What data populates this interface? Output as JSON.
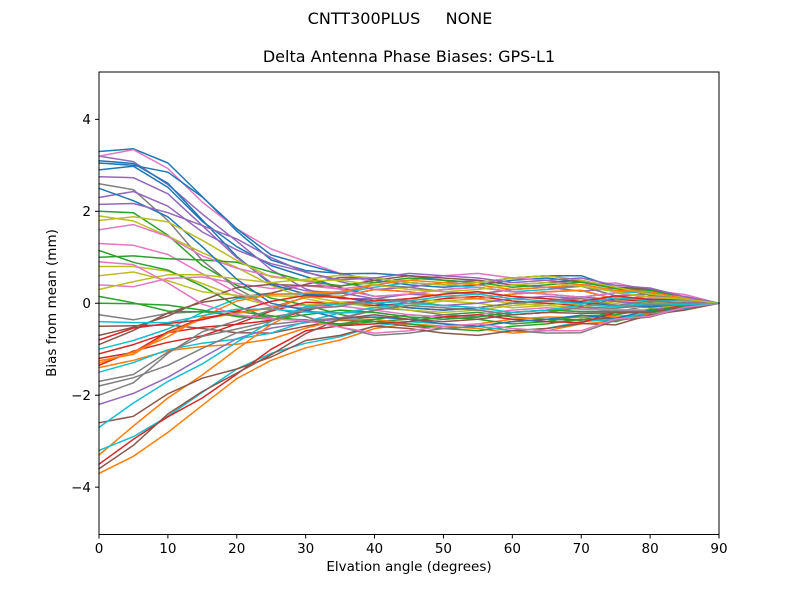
{
  "figure": {
    "suptitle": "CNTT300PLUS     NONE"
  },
  "chart_data": {
    "type": "line",
    "title": "Delta Antenna Phase Biases: GPS-L1",
    "xlabel": "Elvation angle (degrees)",
    "ylabel": "Bias from mean (mm)",
    "xlim": [
      0,
      90
    ],
    "ylim": [
      -5.03,
      5.03
    ],
    "x_ticks": [
      0,
      10,
      20,
      30,
      40,
      50,
      60,
      70,
      80,
      90
    ],
    "y_ticks": [
      -4,
      -2,
      0,
      2,
      4
    ],
    "grid": false,
    "legend": "none",
    "palette": [
      "#1f77b4",
      "#ff7f0e",
      "#2ca02c",
      "#d62728",
      "#9467bd",
      "#8c564b",
      "#e377c2",
      "#7f7f7f",
      "#bcbd22",
      "#17becf"
    ],
    "x": [
      0,
      5,
      10,
      15,
      20,
      25,
      30,
      35,
      40,
      45,
      50,
      55,
      60,
      65,
      70,
      75,
      80,
      85,
      90
    ],
    "series": [
      {
        "values": [
          3.3,
          3.36,
          3.05,
          2.32,
          1.57,
          0.94,
          0.71,
          0.65,
          0.5,
          0.4,
          0.35,
          0.4,
          0.5,
          0.55,
          0.46,
          0.32,
          0.18,
          0.11,
          0
        ]
      },
      {
        "values": [
          -3.7,
          -3.33,
          -2.81,
          -2.22,
          -1.64,
          -1.24,
          -0.97,
          -0.8,
          -0.55,
          -0.45,
          -0.5,
          -0.55,
          -0.65,
          -0.6,
          -0.45,
          -0.39,
          -0.23,
          -0.14,
          0
        ]
      },
      {
        "values": [
          2.0,
          1.97,
          1.48,
          0.82,
          0.39,
          0.11,
          -0.04,
          -0.24,
          -0.4,
          -0.35,
          -0.25,
          -0.2,
          -0.3,
          -0.35,
          -0.37,
          -0.16,
          -0.15,
          -0.03,
          0
        ]
      },
      {
        "values": [
          -1.2,
          -1.07,
          -0.62,
          -0.32,
          -0.21,
          -0.09,
          0.13,
          0.15,
          0.3,
          0.25,
          0.15,
          0.1,
          0.2,
          0.25,
          0.28,
          0.09,
          0.15,
          0.05,
          0
        ]
      },
      {
        "values": [
          3.2,
          3.08,
          2.58,
          1.94,
          1.35,
          0.73,
          0.31,
          0.1,
          0.1,
          0.2,
          0.15,
          0.1,
          0,
          0.05,
          0.14,
          0.07,
          0.1,
          0.03,
          0
        ]
      },
      {
        "values": [
          -0.5,
          -0.49,
          -0.47,
          -0.55,
          -0.64,
          -0.65,
          -0.5,
          -0.37,
          -0.4,
          -0.5,
          -0.55,
          -0.5,
          -0.4,
          -0.35,
          -0.36,
          -0.32,
          -0.28,
          -0.11,
          0
        ]
      },
      {
        "values": [
          3.2,
          3.34,
          2.93,
          2.2,
          1.62,
          1.18,
          0.91,
          0.65,
          0.45,
          0.5,
          0.6,
          0.65,
          0.55,
          0.5,
          0.4,
          0.44,
          0.28,
          0.19,
          0
        ]
      },
      {
        "values": [
          -0.25,
          -0.36,
          -0.22,
          -0.18,
          -0.27,
          -0.3,
          -0.18,
          -0.21,
          -0.1,
          -0.15,
          -0.25,
          -0.3,
          -0.2,
          -0.15,
          -0.08,
          -0.19,
          -0.05,
          -0.05,
          0
        ]
      },
      {
        "values": [
          0.8,
          0.8,
          0.7,
          0.43,
          0.14,
          -0.06,
          -0.04,
          0.02,
          -0.05,
          -0.15,
          -0.2,
          -0.15,
          -0.05,
          0,
          -0.04,
          -0.07,
          -0.1,
          -0.03,
          0
        ]
      },
      {
        "values": [
          -1.0,
          -0.81,
          -0.56,
          -0.2,
          0.1,
          0.2,
          0.2,
          0.21,
          0.35,
          0.45,
          0.4,
          0.35,
          0.25,
          0.3,
          0.37,
          0.25,
          0.23,
          0.09,
          0
        ]
      },
      {
        "values": [
          2.9,
          2.98,
          2.52,
          1.78,
          1.23,
          0.82,
          0.58,
          0.34,
          0.15,
          0.2,
          0.3,
          0.35,
          0.25,
          0.2,
          0.13,
          0.23,
          0.13,
          0.11,
          0
        ]
      },
      {
        "values": [
          -1.4,
          -1.24,
          -1.03,
          -0.94,
          -0.89,
          -0.78,
          -0.54,
          -0.36,
          -0.35,
          -0.45,
          -0.5,
          -0.45,
          -0.35,
          -0.3,
          -0.31,
          -0.28,
          -0.25,
          -0.1,
          0
        ]
      },
      {
        "values": [
          1.15,
          0.89,
          0.72,
          0.37,
          -0.06,
          -0.34,
          -0.36,
          -0.47,
          -0.4,
          -0.45,
          -0.55,
          -0.6,
          -0.5,
          -0.45,
          -0.35,
          -0.4,
          -0.2,
          -0.13,
          0
        ]
      },
      {
        "values": [
          -1.35,
          -1.04,
          -0.85,
          -0.71,
          -0.45,
          -0.17,
          0.02,
          0,
          -0.05,
          0,
          0.1,
          0.15,
          0.05,
          0,
          -0.06,
          0.09,
          0.03,
          0.06,
          0
        ]
      },
      {
        "values": [
          -2.2,
          -1.96,
          -1.61,
          -1.18,
          -0.77,
          -0.54,
          -0.42,
          -0.34,
          -0.15,
          -0.05,
          -0.1,
          -0.15,
          -0.25,
          -0.2,
          -0.09,
          -0.11,
          -0.03,
          -0.04,
          0
        ]
      },
      {
        "values": [
          -0.9,
          -0.59,
          -0.21,
          0.02,
          0.13,
          0.22,
          0.41,
          0.56,
          0.55,
          0.45,
          0.4,
          0.45,
          0.55,
          0.6,
          0.5,
          0.35,
          0.2,
          0.13,
          0
        ]
      },
      {
        "values": [
          0.4,
          0.36,
          0.54,
          0.57,
          0.43,
          0.32,
          0.38,
          0.31,
          0.4,
          0.35,
          0.25,
          0.2,
          0.3,
          0.35,
          0.37,
          0.16,
          0.2,
          0.08,
          0
        ]
      },
      {
        "values": [
          2.6,
          2.47,
          1.8,
          0.93,
          0.32,
          -0.08,
          -0.29,
          -0.52,
          -0.7,
          -0.65,
          -0.55,
          -0.5,
          -0.6,
          -0.65,
          -0.64,
          -0.37,
          -0.3,
          -0.1,
          0
        ]
      },
      {
        "values": [
          1.9,
          1.79,
          1.46,
          1.1,
          0.78,
          0.39,
          0.1,
          -0.04,
          0,
          0.1,
          0.05,
          0,
          -0.1,
          -0.05,
          0.05,
          0,
          0.05,
          0,
          0
        ]
      },
      {
        "values": [
          -1.5,
          -1.29,
          -1.01,
          -0.87,
          -0.78,
          -0.65,
          -0.4,
          -0.21,
          -0.2,
          -0.3,
          -0.35,
          -0.3,
          -0.2,
          -0.15,
          -0.18,
          -0.18,
          -0.18,
          -0.06,
          0
        ]
      },
      {
        "values": [
          3.05,
          3.0,
          2.85,
          2.31,
          1.62,
          1.05,
          0.84,
          0.64,
          0.65,
          0.6,
          0.5,
          0.45,
          0.55,
          0.6,
          0.6,
          0.34,
          0.33,
          0.14,
          0
        ]
      },
      {
        "values": [
          -3.3,
          -2.67,
          -2.06,
          -1.56,
          -1.0,
          -0.46,
          -0.08,
          0.02,
          0.05,
          0.1,
          0.2,
          0.25,
          0.15,
          0.1,
          0.04,
          0.16,
          0.08,
          0.09,
          0
        ]
      },
      {
        "values": [
          0.15,
          0.01,
          -0.17,
          -0.19,
          -0.18,
          -0.27,
          -0.39,
          -0.45,
          -0.35,
          -0.25,
          -0.3,
          -0.35,
          -0.45,
          -0.4,
          -0.27,
          -0.25,
          -0.13,
          -0.09,
          0
        ]
      },
      {
        "values": [
          -1.1,
          -0.9,
          -0.64,
          -0.52,
          -0.46,
          -0.37,
          -0.16,
          0.01,
          0,
          -0.1,
          -0.15,
          -0.1,
          0,
          0.05,
          0.01,
          -0.04,
          -0.08,
          -0.01,
          0
        ]
      },
      {
        "values": [
          2.3,
          2.43,
          2.11,
          1.55,
          1.16,
          0.86,
          0.68,
          0.47,
          0.3,
          0.35,
          0.45,
          0.5,
          0.4,
          0.35,
          0.26,
          0.33,
          0.2,
          0.15,
          0
        ]
      },
      {
        "values": [
          -0.7,
          -0.52,
          -0.28,
          0.06,
          0.34,
          0.41,
          0.38,
          0.37,
          0.5,
          0.6,
          0.55,
          0.5,
          0.4,
          0.45,
          0.5,
          0.35,
          0.3,
          0.13,
          0
        ]
      },
      {
        "values": [
          1.3,
          1.26,
          1.06,
          0.64,
          0.23,
          -0.07,
          -0.1,
          -0.06,
          -0.15,
          -0.25,
          -0.3,
          -0.25,
          -0.15,
          -0.1,
          -0.13,
          -0.14,
          -0.15,
          -0.05,
          0
        ]
      },
      {
        "values": [
          -2.0,
          -1.73,
          -1.09,
          -0.62,
          -0.38,
          -0.15,
          0.15,
          0.22,
          0.4,
          0.35,
          0.25,
          0.2,
          0.3,
          0.35,
          0.37,
          0.16,
          0.2,
          0.08,
          0
        ]
      },
      {
        "values": [
          0.6,
          0.68,
          0.49,
          0.25,
          0.17,
          0.16,
          0.15,
          0.02,
          -0.1,
          -0.05,
          0.05,
          0.1,
          0,
          -0.05,
          -0.1,
          0.05,
          0,
          0.05,
          0
        ]
      },
      {
        "values": [
          -3.2,
          -2.9,
          -2.46,
          -1.94,
          -1.43,
          -1.09,
          -0.87,
          -0.73,
          -0.5,
          -0.4,
          -0.45,
          -0.5,
          -0.6,
          -0.55,
          -0.4,
          -0.35,
          -0.2,
          -0.13,
          0
        ]
      },
      {
        "values": [
          3.1,
          3.04,
          2.61,
          1.81,
          1.02,
          0.41,
          0.2,
          0.14,
          0,
          -0.1,
          -0.15,
          -0.1,
          0,
          0.05,
          0.01,
          -0.04,
          -0.08,
          -0.01,
          0
        ]
      },
      {
        "values": [
          -1.25,
          -1.11,
          -0.65,
          -0.34,
          -0.22,
          -0.1,
          0.13,
          0.15,
          0.3,
          0.25,
          0.15,
          0.1,
          0.2,
          0.25,
          0.28,
          0.09,
          0.15,
          0.05,
          0
        ]
      },
      {
        "values": [
          1.0,
          1.03,
          0.97,
          0.94,
          0.89,
          0.68,
          0.48,
          0.38,
          0.45,
          0.55,
          0.5,
          0.45,
          0.35,
          0.4,
          0.46,
          0.32,
          0.28,
          0.11,
          0
        ]
      },
      {
        "values": [
          -3.5,
          -2.96,
          -2.47,
          -2.06,
          -1.54,
          -1.0,
          -0.6,
          -0.49,
          -0.45,
          -0.4,
          -0.3,
          -0.25,
          -0.35,
          -0.4,
          -0.42,
          -0.2,
          -0.18,
          -0.04,
          0
        ]
      },
      {
        "values": [
          2.75,
          2.73,
          2.38,
          1.69,
          0.99,
          0.45,
          0.27,
          0.23,
          0.1,
          0,
          -0.05,
          0,
          0.1,
          0.15,
          0.1,
          0.04,
          -0.03,
          0.01,
          0
        ]
      },
      {
        "values": [
          -2.6,
          -2.46,
          -1.97,
          -1.63,
          -1.43,
          -1.17,
          -0.81,
          -0.7,
          -0.5,
          -0.55,
          -0.65,
          -0.7,
          -0.6,
          -0.55,
          -0.44,
          -0.47,
          -0.25,
          -0.15,
          0
        ]
      },
      {
        "values": [
          1.6,
          1.71,
          1.45,
          1.03,
          0.76,
          0.59,
          0.48,
          0.3,
          0.15,
          0.2,
          0.3,
          0.35,
          0.25,
          0.2,
          0.13,
          0.23,
          0.13,
          0.11,
          0
        ]
      },
      {
        "values": [
          -1.8,
          -1.62,
          -1.35,
          -0.98,
          -0.64,
          -0.46,
          -0.38,
          -0.32,
          -0.15,
          -0.05,
          -0.1,
          -0.15,
          -0.25,
          -0.2,
          -0.09,
          -0.11,
          -0.03,
          -0.04,
          0
        ]
      },
      {
        "values": [
          0.3,
          0.47,
          0.62,
          0.62,
          0.53,
          0.45,
          0.52,
          0.61,
          0.55,
          0.45,
          0.4,
          0.45,
          0.55,
          0.6,
          0.5,
          0.35,
          0.2,
          0.13,
          0
        ]
      },
      {
        "values": [
          -2.7,
          -2.17,
          -1.7,
          -1.32,
          -0.85,
          -0.39,
          -0.07,
          -0.01,
          0,
          0.05,
          0.15,
          0.2,
          0.1,
          0.05,
          -0.01,
          0.12,
          0.05,
          0.08,
          0
        ]
      },
      {
        "values": [
          2.5,
          2.23,
          1.88,
          1.23,
          0.52,
          0,
          -0.15,
          -0.33,
          -0.3,
          -0.35,
          -0.45,
          -0.5,
          -0.4,
          -0.35,
          -0.26,
          -0.33,
          -0.15,
          -0.1,
          0
        ]
      },
      {
        "values": [
          -1.3,
          -1.06,
          -0.73,
          -0.3,
          0.05,
          0.19,
          0.22,
          0.25,
          0.4,
          0.5,
          0.45,
          0.4,
          0.3,
          0.35,
          0.41,
          0.28,
          0.25,
          0.1,
          0
        ]
      },
      {
        "values": [
          0,
          -0.01,
          -0.04,
          -0.15,
          -0.29,
          -0.35,
          -0.25,
          -0.15,
          -0.2,
          -0.3,
          -0.35,
          -0.3,
          -0.2,
          -0.15,
          -0.18,
          -0.18,
          -0.18,
          -0.06,
          0
        ]
      },
      {
        "values": [
          -0.8,
          -0.54,
          -0.44,
          -0.36,
          -0.17,
          0.04,
          0.17,
          0.12,
          0.05,
          0.1,
          0.2,
          0.25,
          0.15,
          0.1,
          0.04,
          0.16,
          0.08,
          0.09,
          0
        ]
      },
      {
        "values": [
          2.15,
          2.17,
          1.97,
          1.69,
          1.4,
          0.99,
          0.67,
          0.51,
          0.55,
          0.65,
          0.6,
          0.55,
          0.45,
          0.5,
          0.55,
          0.39,
          0.33,
          0.14,
          0
        ]
      },
      {
        "values": [
          -3.6,
          -3.09,
          -2.41,
          -1.92,
          -1.52,
          -1.12,
          -0.66,
          -0.34,
          -0.25,
          -0.35,
          -0.4,
          -0.35,
          -0.25,
          -0.2,
          -0.22,
          -0.21,
          -0.2,
          -0.08,
          0
        ]
      },
      {
        "values": [
          0.9,
          0.84,
          0.44,
          -0.02,
          -0.25,
          -0.34,
          -0.38,
          -0.52,
          -0.65,
          -0.6,
          -0.5,
          -0.45,
          -0.55,
          -0.6,
          -0.6,
          -0.34,
          -0.28,
          -0.09,
          0
        ]
      },
      {
        "values": [
          -1.7,
          -1.55,
          -1.06,
          -0.72,
          -0.56,
          -0.39,
          -0.12,
          -0.07,
          0.1,
          0.05,
          -0.05,
          -0.1,
          0,
          0.05,
          0.1,
          -0.05,
          0.05,
          0,
          0
        ]
      },
      {
        "values": [
          1.8,
          1.88,
          1.77,
          1.37,
          0.93,
          0.57,
          0.49,
          0.5,
          0.4,
          0.3,
          0.25,
          0.3,
          0.4,
          0.45,
          0.37,
          0.25,
          0.13,
          0.09,
          0
        ]
      },
      {
        "values": [
          -0.4,
          -0.42,
          -0.42,
          -0.27,
          -0.13,
          -0.13,
          -0.19,
          -0.22,
          -0.1,
          0,
          -0.05,
          -0.1,
          -0.2,
          -0.15,
          -0.04,
          -0.07,
          0,
          -0.03,
          0
        ]
      }
    ]
  }
}
